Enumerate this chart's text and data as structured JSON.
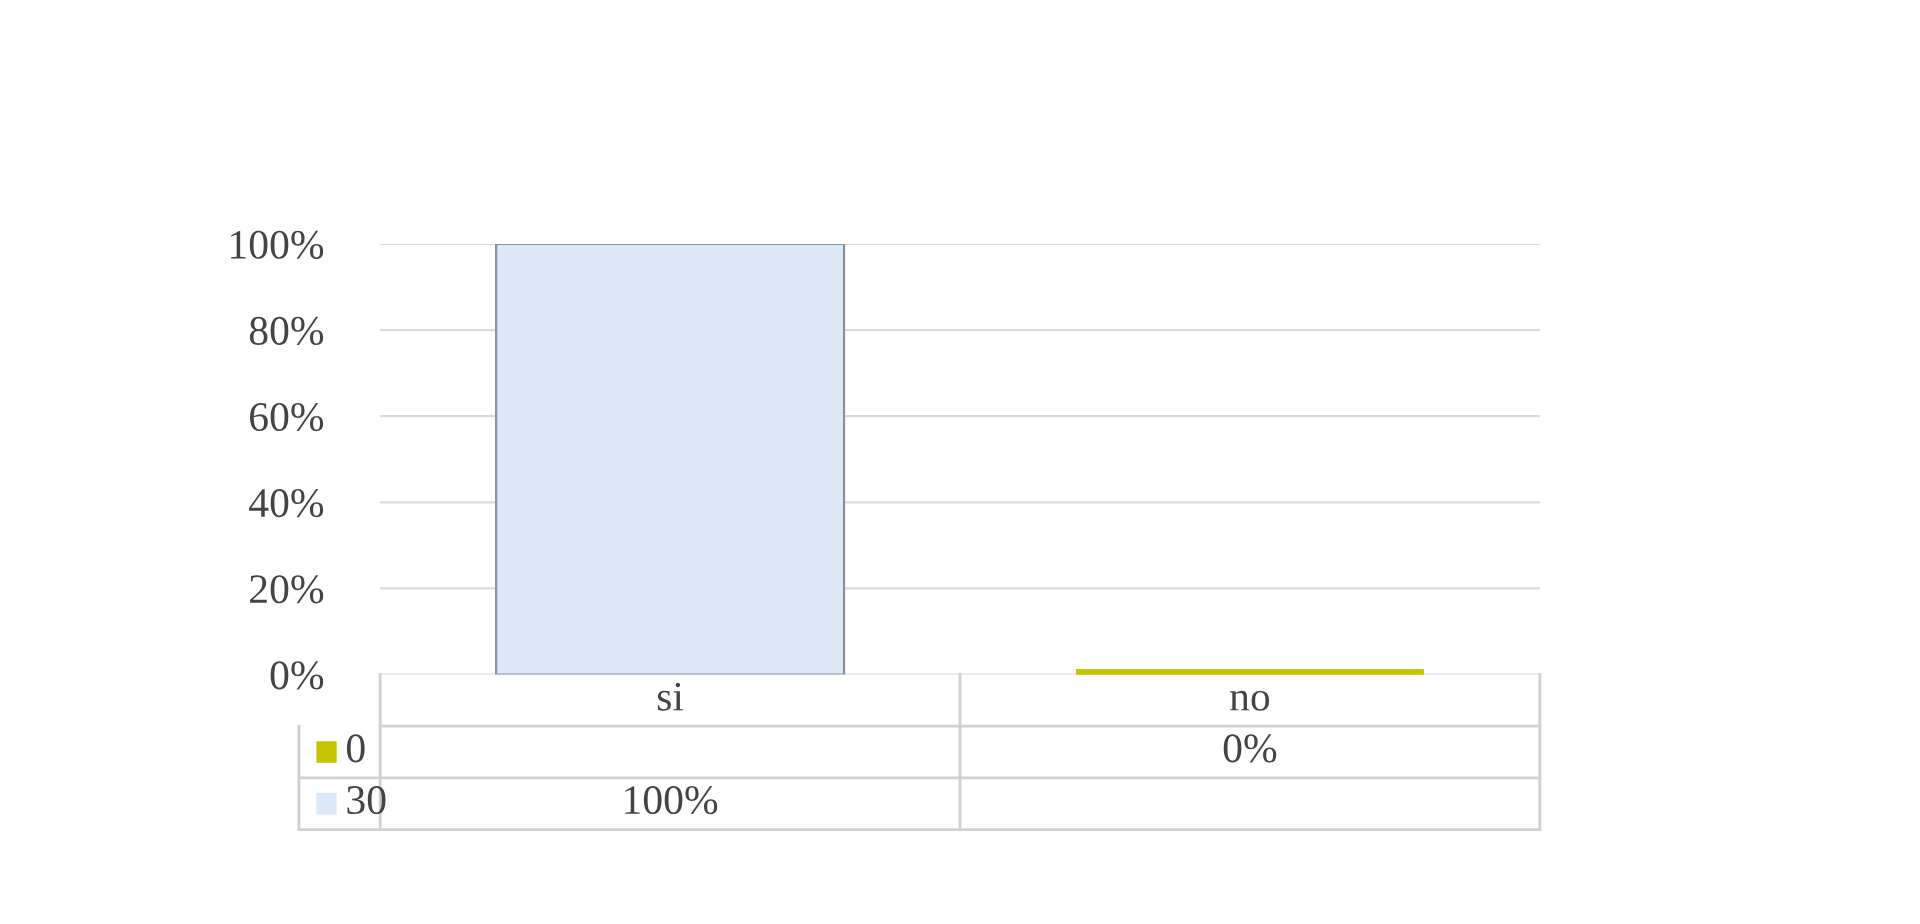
{
  "chart_data": {
    "type": "bar",
    "categories": [
      "si",
      "no"
    ],
    "series": [
      {
        "name": "0",
        "color": "#c4c400",
        "values": [
          null,
          0
        ],
        "value_labels": [
          null,
          "0%"
        ]
      },
      {
        "name": "30",
        "color": "#dde9f7",
        "values": [
          100,
          null
        ],
        "value_labels": [
          "100%",
          null
        ]
      }
    ],
    "stacked": true,
    "ylim": [
      0,
      100
    ],
    "yticks": [
      {
        "value": 0,
        "label": "0%"
      },
      {
        "value": 20,
        "label": "20%"
      },
      {
        "value": 40,
        "label": "40%"
      },
      {
        "value": 60,
        "label": "60%"
      },
      {
        "value": 80,
        "label": "80%"
      },
      {
        "value": 100,
        "label": "100%"
      }
    ],
    "grid": "y",
    "legend": "bottom left"
  }
}
